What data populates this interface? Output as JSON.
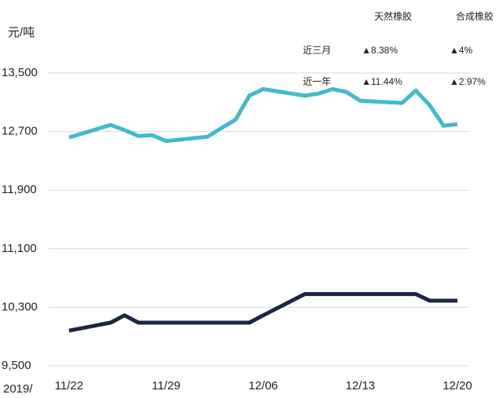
{
  "chart_data": {
    "type": "line",
    "ylabel": "元/吨",
    "xlabel": "2019/",
    "x": [
      "11/22",
      "11/25",
      "11/26",
      "11/27",
      "11/28",
      "11/29",
      "12/02",
      "12/03",
      "12/04",
      "12/05",
      "12/06",
      "12/09",
      "12/10",
      "12/11",
      "12/12",
      "12/13",
      "12/16",
      "12/17",
      "12/18",
      "12/19",
      "12/20"
    ],
    "xticks": [
      "11/22",
      "11/29",
      "12/06",
      "12/13",
      "12/20"
    ],
    "series": [
      {
        "name": "天然橡胶",
        "color": "#45b8c9",
        "values": [
          12620,
          12790,
          12720,
          12640,
          12650,
          12570,
          12630,
          12750,
          12860,
          13190,
          13280,
          13190,
          13220,
          13280,
          13240,
          13120,
          13090,
          13260,
          13060,
          12780,
          12800
        ]
      },
      {
        "name": "合成橡胶",
        "color": "#1c2541",
        "values": [
          9980,
          10090,
          10190,
          10090,
          10090,
          10090,
          10090,
          10090,
          10090,
          10090,
          10190,
          10480,
          10480,
          10480,
          10480,
          10480,
          10480,
          10480,
          10390,
          10390,
          10390
        ]
      }
    ],
    "ylim": [
      9500,
      13500
    ],
    "yticks": [
      {
        "value": 9500,
        "label": "9,500"
      },
      {
        "value": 10300,
        "label": "10,300"
      },
      {
        "value": 11100,
        "label": "11,100"
      },
      {
        "value": 11900,
        "label": "11,900"
      },
      {
        "value": 12700,
        "label": "12,700"
      },
      {
        "value": 13500,
        "label": "13,500"
      }
    ],
    "grid": true,
    "table": {
      "rows": [
        {
          "label": "近三月",
          "cells": [
            "▲8.38%",
            "▲4%"
          ]
        },
        {
          "label": "近一年",
          "cells": [
            "▲11.44%",
            "▲2.97%"
          ]
        }
      ],
      "change_color": "#e60012"
    }
  }
}
